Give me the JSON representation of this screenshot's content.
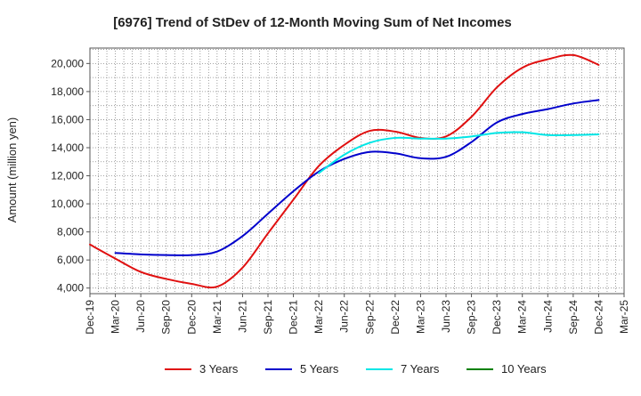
{
  "chart_data": {
    "type": "line",
    "title": "[6976]  Trend of StDev of 12-Month Moving Sum of Net Incomes",
    "ylabel": "Amount (million yen)",
    "xlabel": "",
    "x_ticks": [
      "Dec-19",
      "Mar-20",
      "Jun-20",
      "Sep-20",
      "Dec-20",
      "Mar-21",
      "Jun-21",
      "Sep-21",
      "Dec-21",
      "Mar-22",
      "Jun-22",
      "Sep-22",
      "Dec-22",
      "Mar-23",
      "Jun-23",
      "Sep-23",
      "Dec-23",
      "Mar-24",
      "Jun-24",
      "Sep-24",
      "Dec-24",
      "Mar-25"
    ],
    "y_ticks": [
      4000,
      6000,
      8000,
      10000,
      12000,
      14000,
      16000,
      18000,
      20000
    ],
    "y_tick_labels": [
      "4,000",
      "6,000",
      "8,000",
      "10,000",
      "12,000",
      "14,000",
      "16,000",
      "18,000",
      "20,000"
    ],
    "ylim": [
      3600,
      21100
    ],
    "grid": true,
    "legend_position": "bottom",
    "series": [
      {
        "name": "3 Years",
        "color": "#e01010",
        "values": [
          7100,
          6100,
          5150,
          4650,
          4300,
          4100,
          5450,
          7900,
          10300,
          12700,
          14200,
          15200,
          15150,
          14700,
          14800,
          16200,
          18300,
          19700,
          20300,
          20600,
          19900,
          null
        ]
      },
      {
        "name": "5 Years",
        "color": "#0000cc",
        "values": [
          null,
          6500,
          6400,
          6350,
          6350,
          6600,
          7700,
          9300,
          10900,
          12300,
          13200,
          13700,
          13600,
          13250,
          13350,
          14400,
          15800,
          16400,
          16750,
          17150,
          17400,
          null
        ]
      },
      {
        "name": "7 Years",
        "color": "#00e6e6",
        "values": [
          null,
          null,
          null,
          null,
          null,
          null,
          null,
          null,
          null,
          12200,
          13500,
          14350,
          14700,
          14650,
          14650,
          14800,
          15050,
          15100,
          14900,
          14900,
          14950,
          null
        ]
      },
      {
        "name": "10 Years",
        "color": "#008000",
        "values": [
          null,
          null,
          null,
          null,
          null,
          null,
          null,
          null,
          null,
          null,
          null,
          null,
          null,
          null,
          null,
          null,
          null,
          null,
          null,
          null,
          null,
          null
        ]
      }
    ]
  }
}
